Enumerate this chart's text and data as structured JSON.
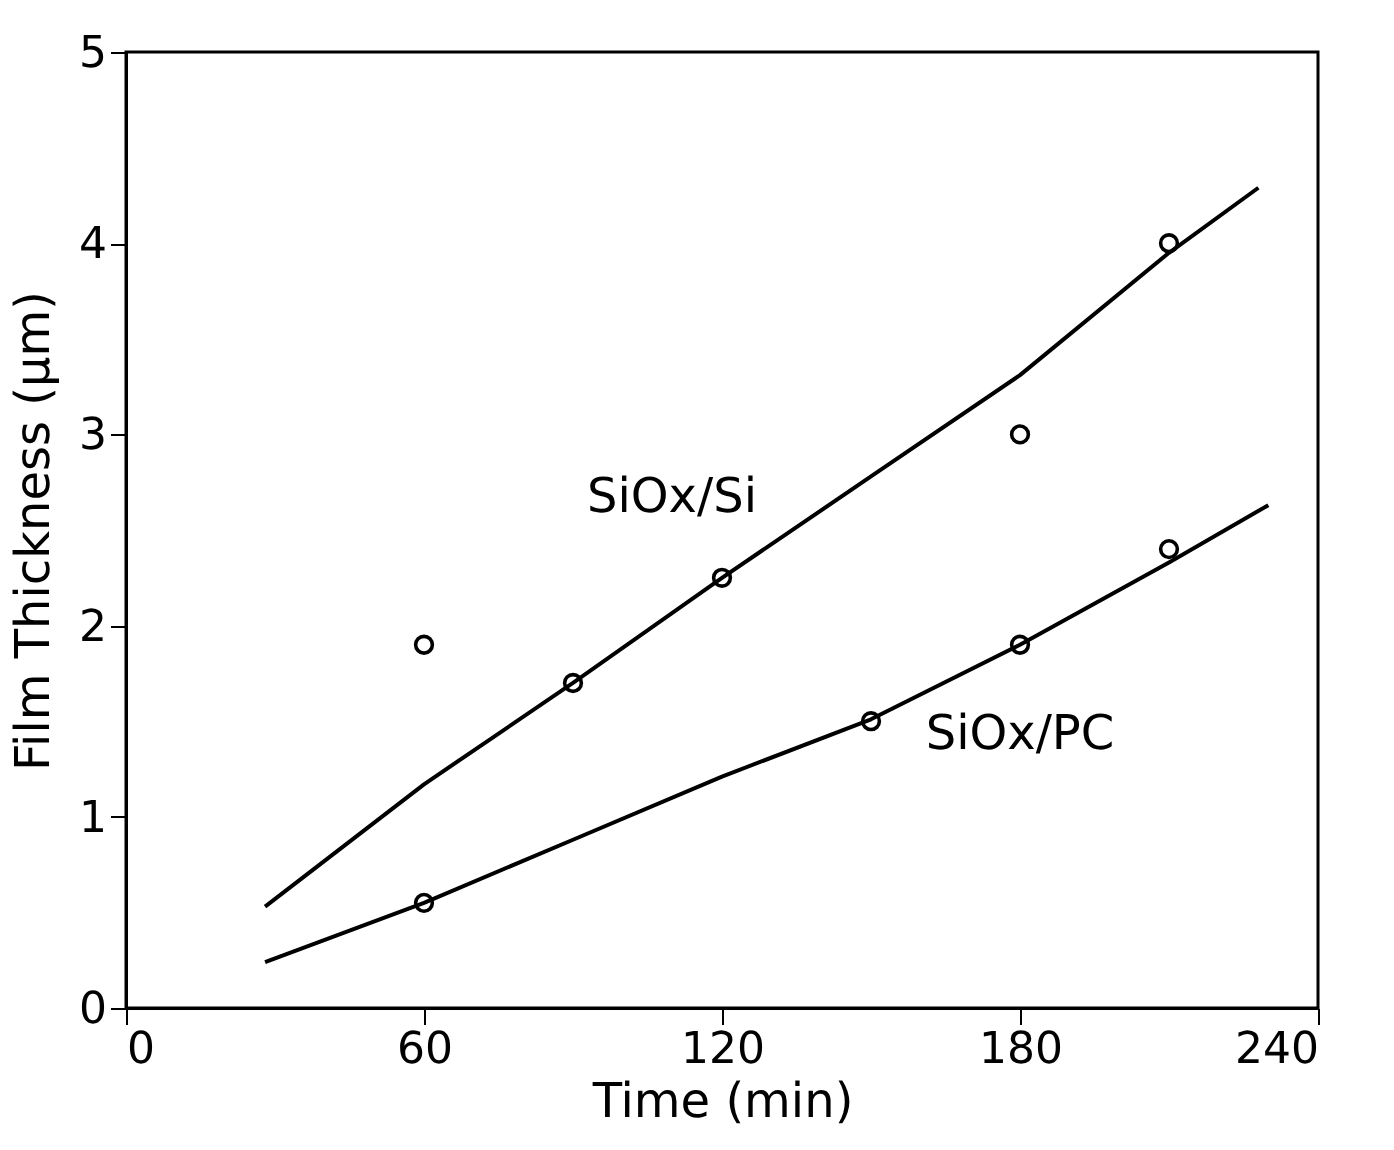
{
  "chart_data": {
    "type": "scatter",
    "xlabel": "Time (min)",
    "ylabel": "Film Thickness (μm)",
    "xlim": [
      0,
      240
    ],
    "xticks": [
      0,
      60,
      120,
      180,
      240
    ],
    "ylim": [
      0,
      5
    ],
    "yticks": [
      0,
      1,
      2,
      3,
      4,
      5
    ],
    "grid": false,
    "series": [
      {
        "name": "SiOx/Si",
        "marker": "circle",
        "color": "#000000",
        "x": [
          60,
          90,
          120,
          180,
          210
        ],
        "values": [
          1.9,
          1.7,
          2.25,
          3.0,
          4.0
        ]
      },
      {
        "name": "SiOx/PC",
        "marker": "circle",
        "color": "#000000",
        "x": [
          60,
          150,
          180,
          210
        ],
        "values": [
          0.55,
          1.5,
          1.9,
          2.4
        ]
      },
      {
        "type": "line",
        "color": "#000000",
        "line_style": "solid",
        "x": [
          28,
          60,
          90,
          120,
          150,
          180,
          210,
          228
        ],
        "values": [
          0.53,
          1.17,
          1.7,
          2.25,
          2.78,
          3.31,
          3.95,
          4.29
        ]
      },
      {
        "type": "line",
        "color": "#000000",
        "line_style": "solid",
        "x": [
          28,
          60,
          90,
          120,
          150,
          180,
          210,
          230
        ],
        "values": [
          0.24,
          0.55,
          0.88,
          1.21,
          1.51,
          1.9,
          2.33,
          2.63
        ]
      }
    ]
  }
}
